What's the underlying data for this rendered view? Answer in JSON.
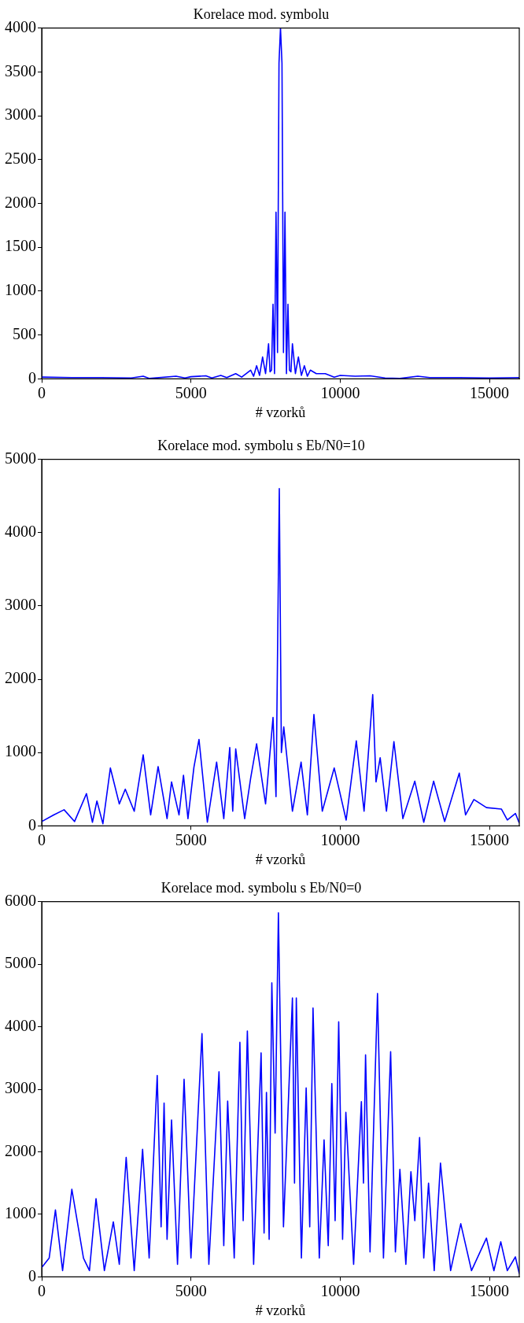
{
  "chart_data": [
    {
      "type": "line",
      "title": "Korelace mod. symbolu",
      "xlabel": "# vzorků",
      "color": "#0000ff",
      "marker": "none",
      "grid": false,
      "xlim": [
        0,
        16000
      ],
      "xticks": [
        0,
        5000,
        10000,
        15000
      ],
      "ylim": [
        0,
        4000
      ],
      "yticks": [
        0,
        500,
        1000,
        1500,
        2000,
        2500,
        3000,
        3500,
        4000
      ],
      "x": [
        0,
        1000,
        2000,
        3000,
        3400,
        3600,
        4500,
        4800,
        5000,
        5500,
        5700,
        6000,
        6200,
        6500,
        6700,
        7000,
        7100,
        7200,
        7300,
        7400,
        7500,
        7600,
        7650,
        7700,
        7750,
        7800,
        7850,
        7900,
        7950,
        8000,
        8050,
        8100,
        8150,
        8200,
        8250,
        8300,
        8350,
        8400,
        8500,
        8600,
        8700,
        8800,
        8900,
        9000,
        9200,
        9500,
        9800,
        10000,
        10500,
        11000,
        11500,
        12000,
        12600,
        13000,
        14000,
        15000,
        16000
      ],
      "values": [
        20,
        15,
        15,
        10,
        30,
        5,
        30,
        10,
        25,
        35,
        10,
        40,
        15,
        60,
        20,
        100,
        30,
        150,
        40,
        250,
        60,
        400,
        80,
        100,
        850,
        60,
        1900,
        300,
        3600,
        4000,
        3600,
        300,
        1900,
        60,
        850,
        100,
        80,
        400,
        60,
        250,
        40,
        150,
        30,
        100,
        60,
        60,
        20,
        40,
        30,
        35,
        10,
        5,
        30,
        15,
        15,
        10,
        15
      ]
    },
    {
      "type": "line",
      "title": "Korelace mod. symbolu s Eb/N0=10",
      "xlabel": "# vzorků",
      "color": "#0000ff",
      "marker": "none",
      "grid": false,
      "xlim": [
        0,
        16000
      ],
      "xticks": [
        0,
        5000,
        10000,
        15000
      ],
      "ylim": [
        0,
        5000
      ],
      "yticks": [
        0,
        1000,
        2000,
        3000,
        4000,
        5000
      ],
      "x": [
        0,
        400,
        750,
        1100,
        1500,
        1700,
        1850,
        2050,
        2300,
        2600,
        2800,
        3100,
        3400,
        3650,
        3900,
        4200,
        4350,
        4600,
        4750,
        4900,
        5100,
        5270,
        5550,
        5860,
        6100,
        6300,
        6400,
        6500,
        6800,
        7000,
        7200,
        7500,
        7750,
        7850,
        7960,
        8030,
        8110,
        8400,
        8690,
        8900,
        9120,
        9400,
        9800,
        10200,
        10540,
        10800,
        11090,
        11200,
        11340,
        11550,
        11800,
        12100,
        12500,
        12800,
        13130,
        13500,
        13990,
        14200,
        14480,
        14900,
        15400,
        15600,
        15870,
        16000
      ],
      "values": [
        60,
        150,
        220,
        60,
        440,
        50,
        340,
        30,
        790,
        300,
        500,
        200,
        970,
        150,
        810,
        100,
        600,
        150,
        690,
        100,
        800,
        1180,
        50,
        870,
        100,
        1070,
        200,
        1050,
        100,
        650,
        1120,
        300,
        1480,
        400,
        4600,
        1000,
        1350,
        200,
        870,
        150,
        1520,
        200,
        790,
        80,
        1160,
        200,
        1790,
        600,
        930,
        200,
        1150,
        100,
        610,
        50,
        610,
        60,
        720,
        150,
        360,
        250,
        230,
        80,
        170,
        40
      ]
    },
    {
      "type": "line",
      "title": "Korelace mod. symbolu s Eb/N0=0",
      "xlabel": "# vzorků",
      "color": "#0000ff",
      "marker": "none",
      "grid": false,
      "xlim": [
        0,
        16000
      ],
      "xticks": [
        0,
        5000,
        10000,
        15000
      ],
      "ylim": [
        0,
        6000
      ],
      "yticks": [
        0,
        1000,
        2000,
        3000,
        4000,
        5000,
        6000
      ],
      "x": [
        0,
        250,
        460,
        700,
        1010,
        1400,
        1600,
        1820,
        2100,
        2400,
        2600,
        2830,
        3100,
        3380,
        3600,
        3870,
        4000,
        4100,
        4200,
        4350,
        4550,
        4770,
        5000,
        5370,
        5600,
        5940,
        6100,
        6230,
        6450,
        6640,
        6750,
        6890,
        7100,
        7350,
        7450,
        7530,
        7620,
        7710,
        7820,
        7930,
        8100,
        8400,
        8470,
        8530,
        8700,
        8860,
        8980,
        9090,
        9300,
        9460,
        9600,
        9720,
        9830,
        9950,
        10080,
        10190,
        10450,
        10710,
        10780,
        10850,
        11000,
        11250,
        11450,
        11690,
        11850,
        12000,
        12200,
        12370,
        12500,
        12660,
        12800,
        12960,
        13150,
        13360,
        13700,
        14040,
        14400,
        14900,
        15150,
        15380,
        15600,
        15870,
        16000
      ],
      "values": [
        150,
        300,
        1070,
        100,
        1400,
        300,
        100,
        1250,
        100,
        880,
        200,
        1910,
        100,
        2040,
        300,
        3220,
        800,
        2780,
        600,
        2510,
        200,
        3160,
        300,
        3890,
        200,
        3280,
        500,
        2810,
        300,
        3750,
        900,
        3930,
        200,
        3580,
        700,
        2950,
        600,
        4700,
        2300,
        5820,
        800,
        4460,
        1500,
        4460,
        300,
        3020,
        800,
        4300,
        300,
        2190,
        500,
        3090,
        900,
        4080,
        600,
        2630,
        200,
        2800,
        1500,
        3550,
        400,
        4530,
        300,
        3600,
        400,
        1720,
        200,
        1680,
        900,
        2230,
        300,
        1500,
        100,
        1820,
        100,
        850,
        100,
        620,
        100,
        560,
        100,
        320,
        50
      ]
    }
  ]
}
